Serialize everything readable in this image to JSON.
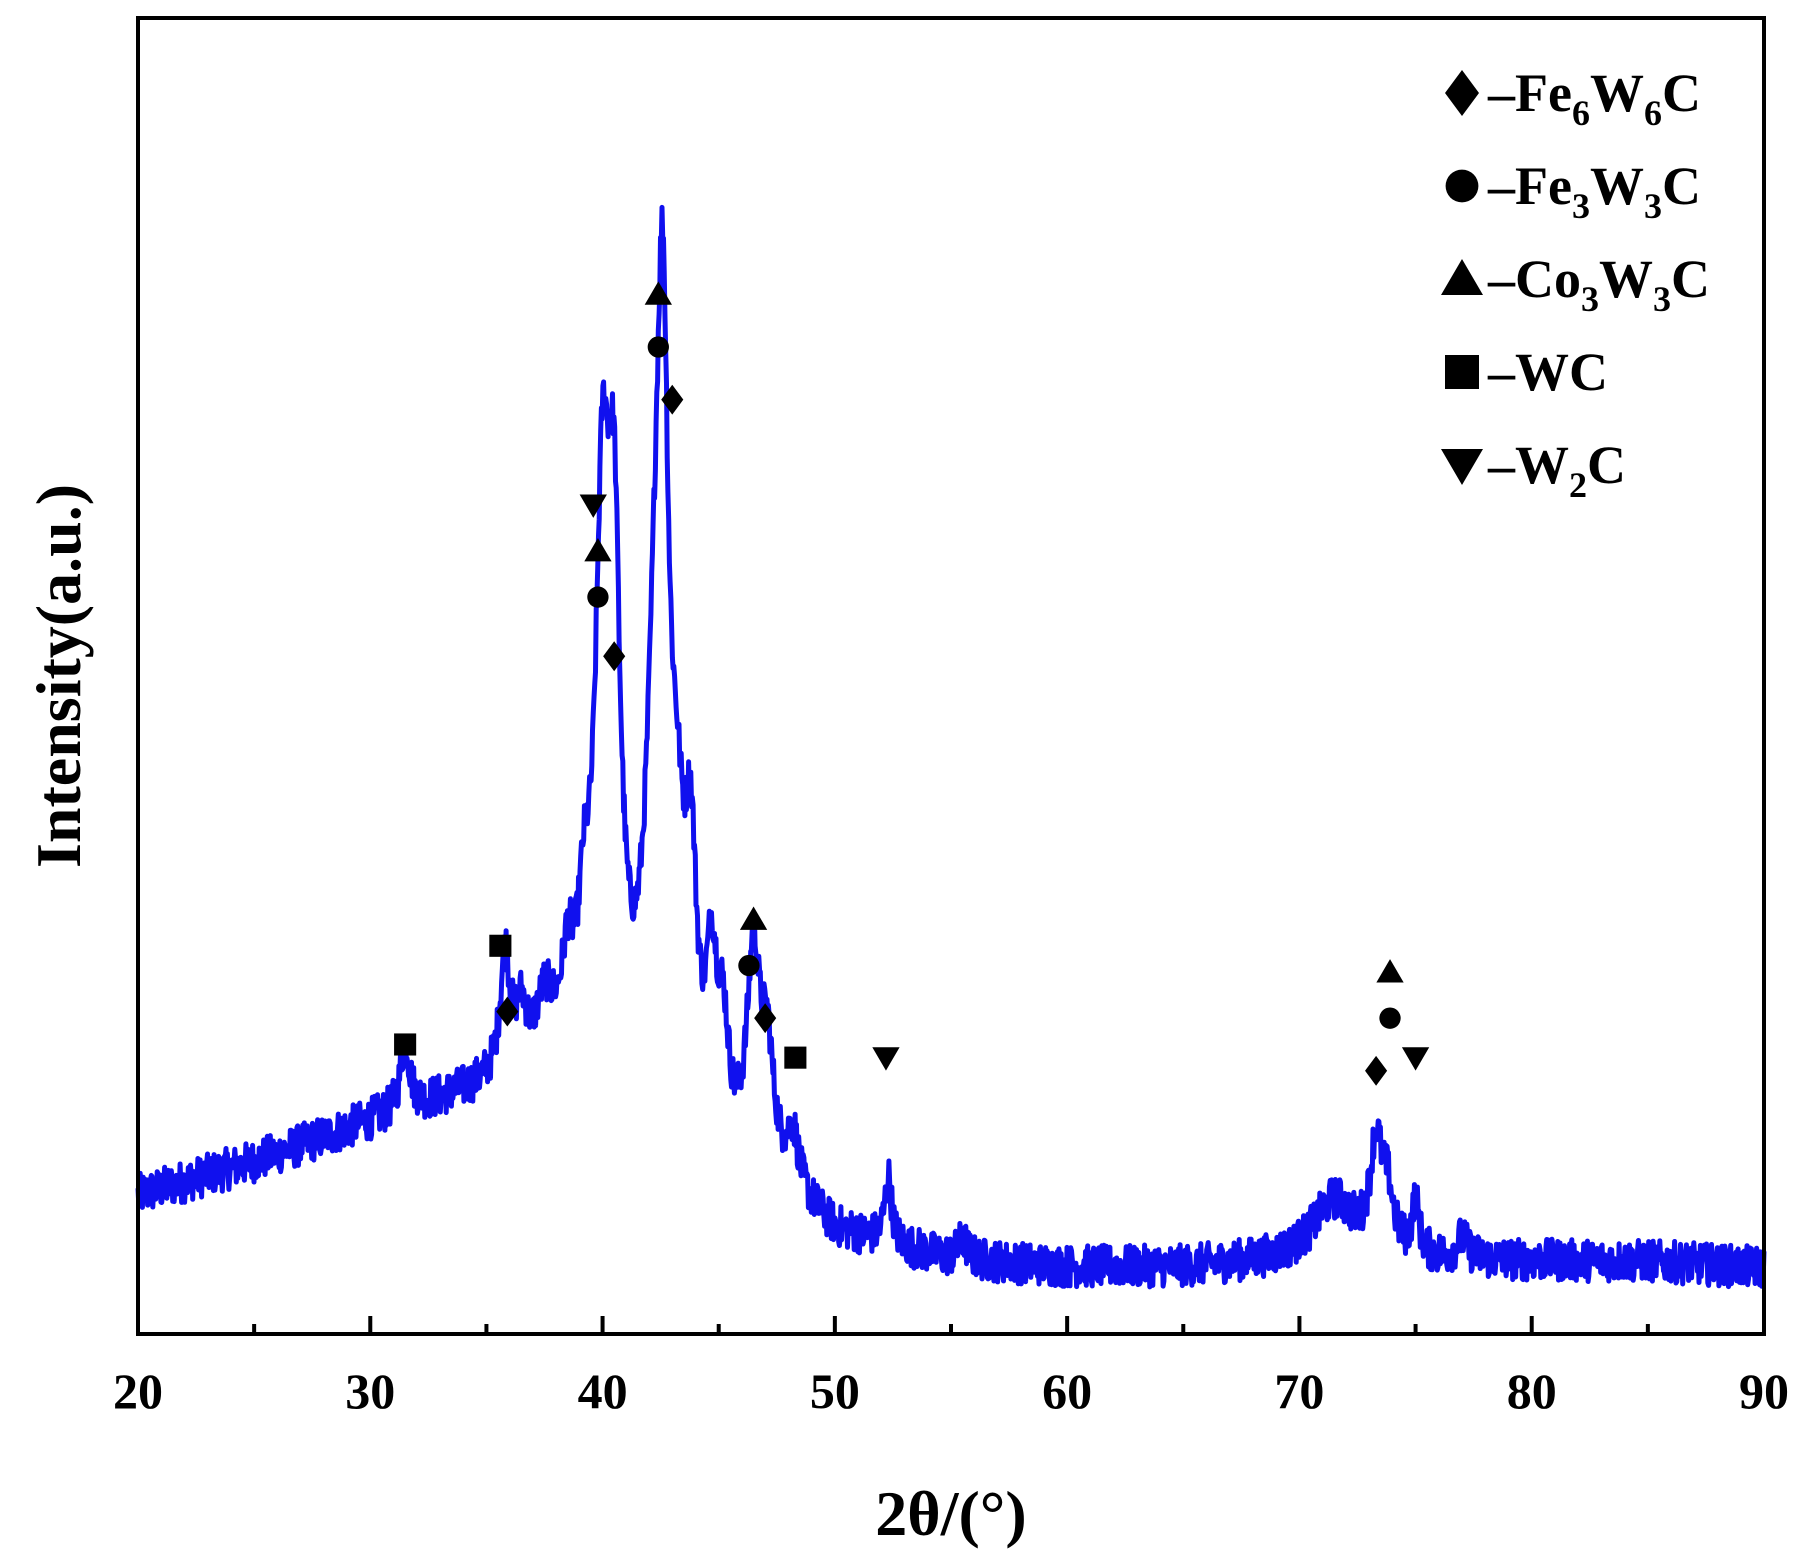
{
  "chart_data": {
    "type": "line",
    "xlabel": "2θ/(°)",
    "ylabel": "Intensity(a.u.)",
    "xlim": [
      20,
      90
    ],
    "ylim": [
      0,
      100
    ],
    "x_ticks": [
      20,
      30,
      40,
      50,
      60,
      70,
      80,
      90
    ],
    "x_minor_step": 5,
    "y_ticks_shown": false,
    "grid": false,
    "legend_position": "top-right",
    "colors": {
      "line": "#1010ee",
      "axes": "#000000",
      "markers": "#000000"
    },
    "baseline": {
      "x": [
        20,
        25,
        30,
        35,
        38,
        45.5,
        47.5,
        50,
        55,
        60,
        65,
        70,
        75,
        80,
        85,
        90
      ],
      "y": [
        10.5,
        13,
        16,
        18.5,
        20,
        11,
        11,
        7.5,
        5.5,
        5,
        5,
        5.5,
        5.5,
        5.5,
        5.5,
        5
      ]
    },
    "peaks": [
      {
        "center": 31.5,
        "height": 5,
        "width": 0.25
      },
      {
        "center": 35.8,
        "height": 9,
        "width": 0.25
      },
      {
        "center": 36.5,
        "height": 4,
        "width": 0.3
      },
      {
        "center": 37.5,
        "height": 4,
        "width": 0.4
      },
      {
        "center": 38.5,
        "height": 6,
        "width": 0.3
      },
      {
        "center": 39.2,
        "height": 8,
        "width": 0.3
      },
      {
        "center": 40.0,
        "height": 40,
        "width": 0.38
      },
      {
        "center": 40.5,
        "height": 33,
        "width": 0.32
      },
      {
        "center": 42.3,
        "height": 30,
        "width": 0.5
      },
      {
        "center": 42.6,
        "height": 40,
        "width": 0.28
      },
      {
        "center": 43.2,
        "height": 14,
        "width": 0.4
      },
      {
        "center": 43.8,
        "height": 17,
        "width": 0.3
      },
      {
        "center": 44.7,
        "height": 12,
        "width": 0.3
      },
      {
        "center": 45.2,
        "height": 8,
        "width": 0.3
      },
      {
        "center": 46.5,
        "height": 16,
        "width": 0.35
      },
      {
        "center": 47.1,
        "height": 8,
        "width": 0.3
      },
      {
        "center": 48.2,
        "height": 4,
        "width": 0.3
      },
      {
        "center": 52.3,
        "height": 5,
        "width": 0.18
      },
      {
        "center": 55.5,
        "height": 1.5,
        "width": 0.25
      },
      {
        "center": 71.5,
        "height": 4.5,
        "width": 1.1
      },
      {
        "center": 73.3,
        "height": 8,
        "width": 0.3
      },
      {
        "center": 73.8,
        "height": 4,
        "width": 0.3
      },
      {
        "center": 75.0,
        "height": 4,
        "width": 0.18
      },
      {
        "center": 77.0,
        "height": 1.5,
        "width": 0.3
      }
    ],
    "noise_amplitude": 1.6,
    "legend": [
      {
        "symbol": "diamond",
        "label": "–Fe",
        "sub1": "6",
        "mid": "W",
        "sub2": "6",
        "tail": "C"
      },
      {
        "symbol": "circle",
        "label": "–Fe",
        "sub1": "3",
        "mid": "W",
        "sub2": "3",
        "tail": "C"
      },
      {
        "symbol": "triangle",
        "label": "–Co",
        "sub1": "3",
        "mid": "W",
        "sub2": "3",
        "tail": "C"
      },
      {
        "symbol": "square",
        "label": "–WC",
        "sub1": "",
        "mid": "",
        "sub2": "",
        "tail": ""
      },
      {
        "symbol": "triangle-down",
        "label": "–W",
        "sub1": "2",
        "mid": "",
        "sub2": "",
        "tail": "C"
      }
    ],
    "annotations": [
      {
        "symbol": "square",
        "x": 31.5,
        "y": 22
      },
      {
        "symbol": "square",
        "x": 35.6,
        "y": 29.5
      },
      {
        "symbol": "diamond",
        "x": 35.9,
        "y": 24.5
      },
      {
        "symbol": "triangle-down",
        "x": 39.6,
        "y": 63
      },
      {
        "symbol": "triangle",
        "x": 39.8,
        "y": 59.5
      },
      {
        "symbol": "circle",
        "x": 39.8,
        "y": 56
      },
      {
        "symbol": "diamond",
        "x": 40.5,
        "y": 51.5
      },
      {
        "symbol": "triangle",
        "x": 42.4,
        "y": 79
      },
      {
        "symbol": "circle",
        "x": 42.4,
        "y": 75
      },
      {
        "symbol": "diamond",
        "x": 43.0,
        "y": 71
      },
      {
        "symbol": "triangle",
        "x": 46.5,
        "y": 31.5
      },
      {
        "symbol": "circle",
        "x": 46.3,
        "y": 28
      },
      {
        "symbol": "diamond",
        "x": 47.0,
        "y": 24
      },
      {
        "symbol": "square",
        "x": 48.3,
        "y": 21
      },
      {
        "symbol": "triangle-down",
        "x": 52.2,
        "y": 21
      },
      {
        "symbol": "triangle",
        "x": 73.9,
        "y": 27.5
      },
      {
        "symbol": "circle",
        "x": 73.9,
        "y": 24
      },
      {
        "symbol": "diamond",
        "x": 73.3,
        "y": 20
      },
      {
        "symbol": "triangle-down",
        "x": 75.0,
        "y": 21
      }
    ]
  }
}
